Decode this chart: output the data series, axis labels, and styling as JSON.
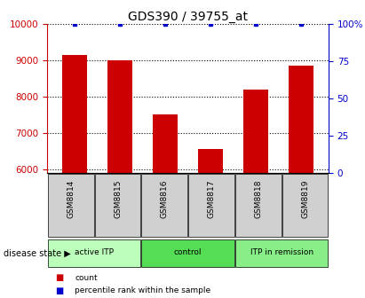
{
  "title": "GDS390 / 39755_at",
  "samples": [
    "GSM8814",
    "GSM8815",
    "GSM8816",
    "GSM8817",
    "GSM8818",
    "GSM8819"
  ],
  "counts": [
    9150,
    9000,
    7500,
    6550,
    8200,
    8850
  ],
  "percentile_ranks": [
    100,
    100,
    100,
    100,
    100,
    100
  ],
  "ylim_left": [
    5900,
    10000
  ],
  "ylim_right": [
    0,
    100
  ],
  "yticks_left": [
    6000,
    7000,
    8000,
    9000,
    10000
  ],
  "yticks_right": [
    0,
    25,
    50,
    75,
    100
  ],
  "bar_color": "#cc0000",
  "dot_color": "#0000cc",
  "groups": [
    {
      "label": "active ITP",
      "indices": [
        0,
        1
      ],
      "color": "#bbffbb"
    },
    {
      "label": "control",
      "indices": [
        2,
        3
      ],
      "color": "#55dd55"
    },
    {
      "label": "ITP in remission",
      "indices": [
        4,
        5
      ],
      "color": "#88ee88"
    }
  ],
  "disease_state_label": "disease state",
  "legend_count_label": "count",
  "legend_percentile_label": "percentile rank within the sample",
  "title_fontsize": 10,
  "axis_label_color_left": "#cc0000",
  "axis_label_color_right": "#0000cc",
  "background_color": "#ffffff",
  "sample_box_color": "#d0d0d0",
  "bar_width": 0.55
}
